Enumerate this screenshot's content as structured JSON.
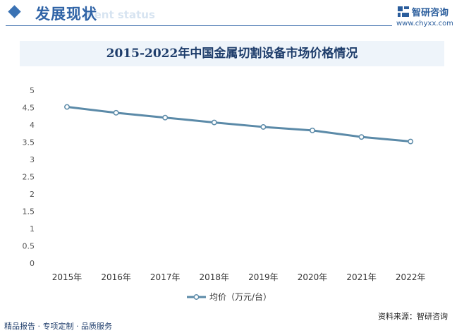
{
  "header": {
    "section_title": "发展现状",
    "ghost_text": "ment status"
  },
  "brand": {
    "name": "智研咨询",
    "url": "www.chyxx.com",
    "logo_icon": "chyxx-logo-icon"
  },
  "footer": {
    "left_text": "精品报告 · 专项定制 · 品质服务",
    "source_text": "资料来源：智研咨询"
  },
  "colors": {
    "accent": "#2f63a6",
    "series_line": "#5b8aa8",
    "title_band": "#eef4fa"
  },
  "chart_data": {
    "type": "line",
    "title": "2015-2022年中国金属切割设备市场价格情况",
    "categories": [
      "2015年",
      "2016年",
      "2017年",
      "2018年",
      "2019年",
      "2020年",
      "2021年",
      "2022年"
    ],
    "series": [
      {
        "name": "均价（万元/台）",
        "values": [
          4.52,
          4.35,
          4.21,
          4.07,
          3.94,
          3.84,
          3.65,
          3.52
        ]
      }
    ],
    "y_ticks": [
      "0",
      "0.5",
      "1",
      "1.5",
      "2",
      "2.5",
      "3",
      "3.5",
      "4",
      "4.5",
      "5"
    ],
    "ylim": [
      0,
      5
    ],
    "grid": false,
    "legend_position": "bottom",
    "markers": "hollow-circle"
  }
}
